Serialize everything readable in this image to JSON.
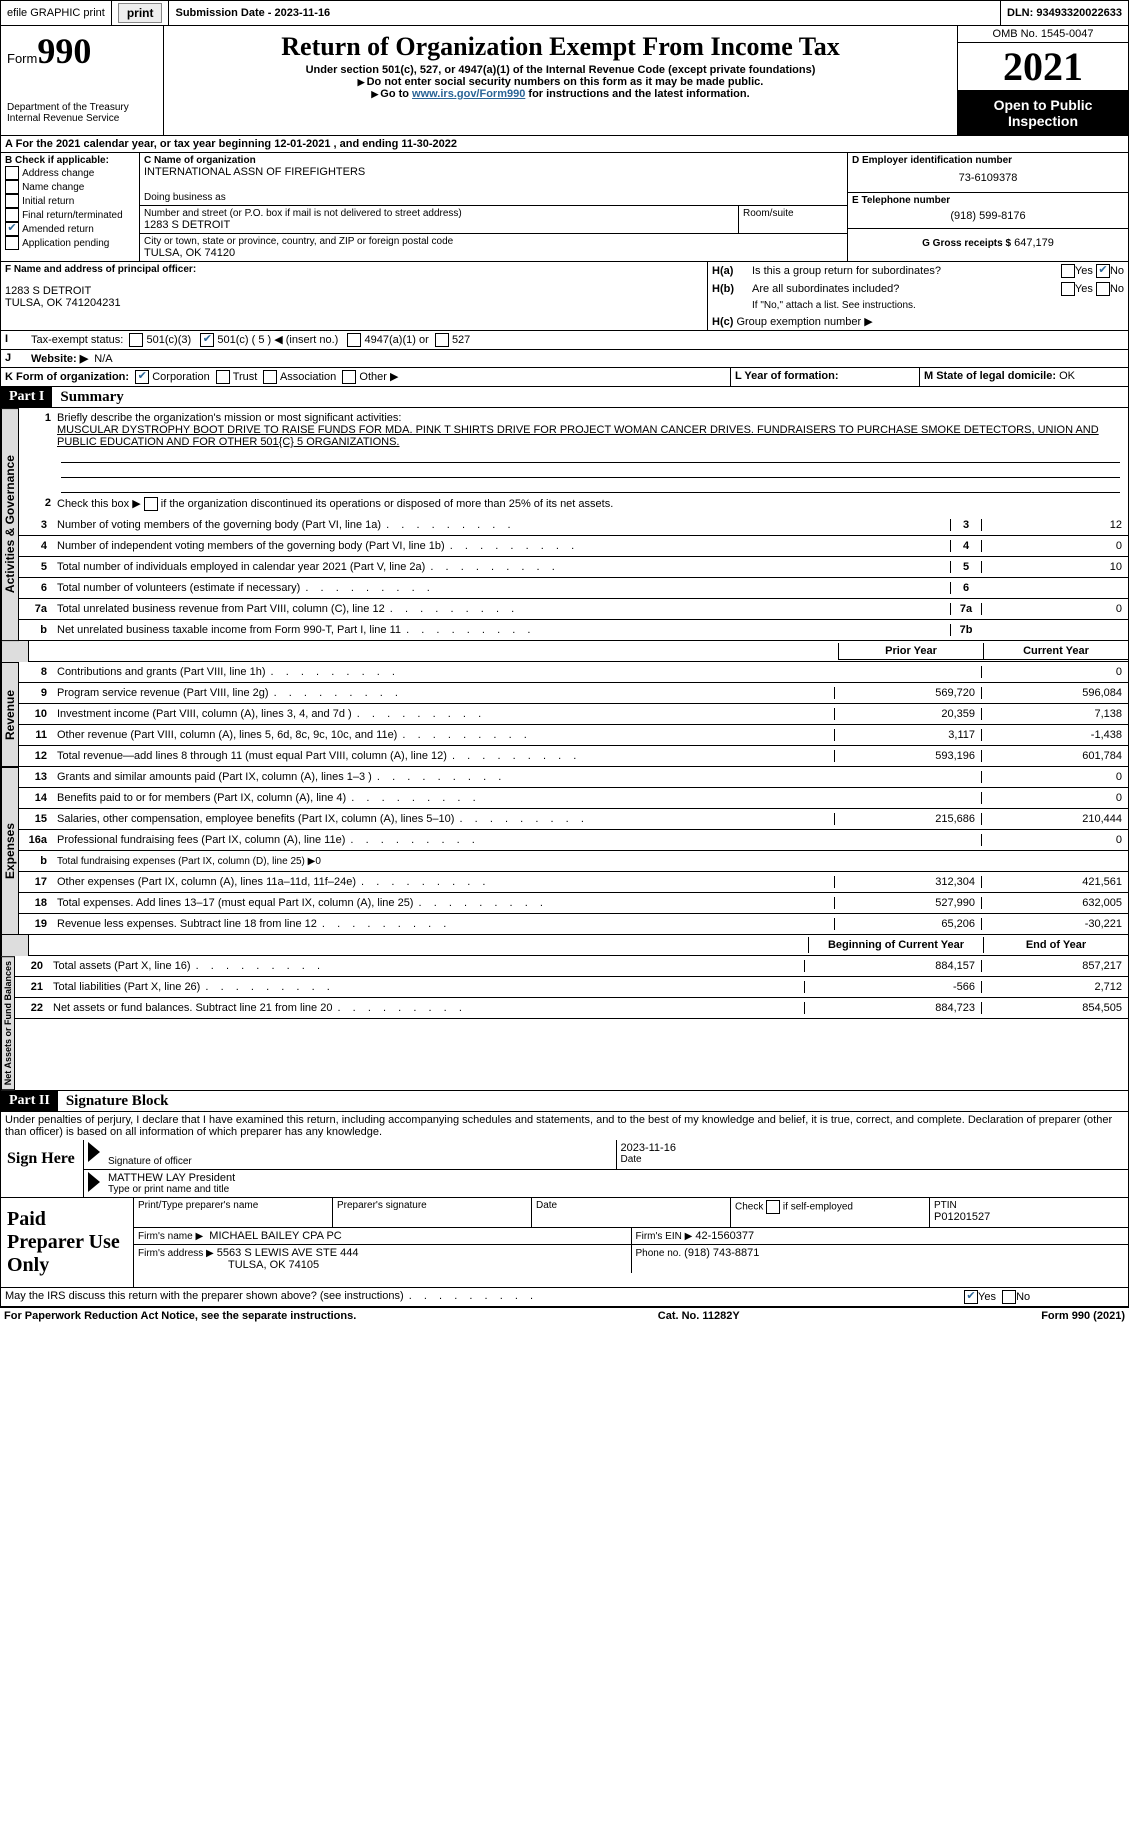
{
  "top": {
    "efile": "efile GRAPHIC print",
    "sub_label": "Submission Date -",
    "sub_date": "2023-11-16",
    "dln_label": "DLN:",
    "dln": "93493320022633"
  },
  "header": {
    "form_word": "Form",
    "form_num": "990",
    "dept": "Department of the Treasury",
    "irs": "Internal Revenue Service",
    "title": "Return of Organization Exempt From Income Tax",
    "sub1": "Under section 501(c), 527, or 4947(a)(1) of the Internal Revenue Code (except private foundations)",
    "sub2": "Do not enter social security numbers on this form as it may be made public.",
    "sub3_pre": "Go to ",
    "sub3_link": "www.irs.gov/Form990",
    "sub3_post": " for instructions and the latest information.",
    "omb": "OMB No. 1545-0047",
    "year": "2021",
    "inspect": "Open to Public Inspection"
  },
  "a": {
    "line": "For the 2021 calendar year, or tax year beginning 12-01-2021   , and ending 11-30-2022"
  },
  "b": {
    "label": "B Check if applicable:",
    "opts": [
      "Address change",
      "Name change",
      "Initial return",
      "Final return/terminated",
      "Amended return",
      "Application pending"
    ]
  },
  "c": {
    "name_lbl": "C Name of organization",
    "name": "INTERNATIONAL ASSN OF FIREFIGHTERS",
    "dba_lbl": "Doing business as",
    "street_lbl": "Number and street (or P.O. box if mail is not delivered to street address)",
    "street": "1283 S DETROIT",
    "room_lbl": "Room/suite",
    "city_lbl": "City or town, state or province, country, and ZIP or foreign postal code",
    "city": "TULSA, OK  74120"
  },
  "d": {
    "lbl": "D Employer identification number",
    "val": "73-6109378"
  },
  "e": {
    "lbl": "E Telephone number",
    "val": "(918) 599-8176"
  },
  "g": {
    "lbl": "G Gross receipts $",
    "val": "647,179"
  },
  "f": {
    "lbl": "F  Name and address of principal officer:",
    "addr1": "1283 S DETROIT",
    "addr2": "TULSA, OK  741204231"
  },
  "h": {
    "a": "Is this a group return for subordinates?",
    "b": "Are all subordinates included?",
    "note": "If \"No,\" attach a list. See instructions.",
    "c": "Group exemption number ▶",
    "yes": "Yes",
    "no": "No"
  },
  "i": {
    "lbl": "Tax-exempt status:",
    "o1": "501(c)(3)",
    "o2": "501(c) ( 5 ) ◀ (insert no.)",
    "o3": "4947(a)(1) or",
    "o4": "527"
  },
  "j": {
    "lbl": "Website: ▶",
    "val": "N/A"
  },
  "k": {
    "lbl": "K Form of organization:",
    "o1": "Corporation",
    "o2": "Trust",
    "o3": "Association",
    "o4": "Other ▶"
  },
  "l": {
    "lbl": "L Year of formation:"
  },
  "m": {
    "lbl": "M State of legal domicile:",
    "val": "OK"
  },
  "part1": {
    "label": "Part I",
    "title": "Summary",
    "l1_lbl": "Briefly describe the organization's mission or most significant activities:",
    "l1_txt": "MUSCULAR DYSTROPHY BOOT DRIVE TO RAISE FUNDS FOR MDA. PINK T SHIRTS DRIVE FOR PROJECT WOMAN CANCER DRIVES. FUNDRAISERS TO PURCHASE SMOKE DETECTORS, UNION AND PUBLIC EDUCATION AND FOR OTHER 501{C} 5 ORGANIZATIONS.",
    "l2": "Check this box ▶      if the organization discontinued its operations or disposed of more than 25% of its net assets.",
    "lines": [
      {
        "n": "3",
        "t": "Number of voting members of the governing body (Part VI, line 1a)",
        "k": "3",
        "v": "12"
      },
      {
        "n": "4",
        "t": "Number of independent voting members of the governing body (Part VI, line 1b)",
        "k": "4",
        "v": "0"
      },
      {
        "n": "5",
        "t": "Total number of individuals employed in calendar year 2021 (Part V, line 2a)",
        "k": "5",
        "v": "10"
      },
      {
        "n": "6",
        "t": "Total number of volunteers (estimate if necessary)",
        "k": "6",
        "v": ""
      },
      {
        "n": "7a",
        "t": "Total unrelated business revenue from Part VIII, column (C), line 12",
        "k": "7a",
        "v": "0"
      },
      {
        "n": "b",
        "t": "Net unrelated business taxable income from Form 990-T, Part I, line 11",
        "k": "7b",
        "v": ""
      }
    ],
    "prior": "Prior Year",
    "current": "Current Year",
    "rev": [
      {
        "n": "8",
        "t": "Contributions and grants (Part VIII, line 1h)",
        "p": "",
        "c": "0"
      },
      {
        "n": "9",
        "t": "Program service revenue (Part VIII, line 2g)",
        "p": "569,720",
        "c": "596,084"
      },
      {
        "n": "10",
        "t": "Investment income (Part VIII, column (A), lines 3, 4, and 7d )",
        "p": "20,359",
        "c": "7,138"
      },
      {
        "n": "11",
        "t": "Other revenue (Part VIII, column (A), lines 5, 6d, 8c, 9c, 10c, and 11e)",
        "p": "3,117",
        "c": "-1,438"
      },
      {
        "n": "12",
        "t": "Total revenue—add lines 8 through 11 (must equal Part VIII, column (A), line 12)",
        "p": "593,196",
        "c": "601,784"
      }
    ],
    "exp": [
      {
        "n": "13",
        "t": "Grants and similar amounts paid (Part IX, column (A), lines 1–3 )",
        "p": "",
        "c": "0"
      },
      {
        "n": "14",
        "t": "Benefits paid to or for members (Part IX, column (A), line 4)",
        "p": "",
        "c": "0"
      },
      {
        "n": "15",
        "t": "Salaries, other compensation, employee benefits (Part IX, column (A), lines 5–10)",
        "p": "215,686",
        "c": "210,444"
      },
      {
        "n": "16a",
        "t": "Professional fundraising fees (Part IX, column (A), line 11e)",
        "p": "",
        "c": "0"
      },
      {
        "n": "b",
        "t": "Total fundraising expenses (Part IX, column (D), line 25) ▶0",
        "shaded": true
      },
      {
        "n": "17",
        "t": "Other expenses (Part IX, column (A), lines 11a–11d, 11f–24e)",
        "p": "312,304",
        "c": "421,561"
      },
      {
        "n": "18",
        "t": "Total expenses. Add lines 13–17 (must equal Part IX, column (A), line 25)",
        "p": "527,990",
        "c": "632,005"
      },
      {
        "n": "19",
        "t": "Revenue less expenses. Subtract line 18 from line 12",
        "p": "65,206",
        "c": "-30,221"
      }
    ],
    "boy": "Beginning of Current Year",
    "eoy": "End of Year",
    "net": [
      {
        "n": "20",
        "t": "Total assets (Part X, line 16)",
        "p": "884,157",
        "c": "857,217"
      },
      {
        "n": "21",
        "t": "Total liabilities (Part X, line 26)",
        "p": "-566",
        "c": "2,712"
      },
      {
        "n": "22",
        "t": "Net assets or fund balances. Subtract line 21 from line 20",
        "p": "884,723",
        "c": "854,505"
      }
    ],
    "vtabs": {
      "gov": "Activities & Governance",
      "rev": "Revenue",
      "exp": "Expenses",
      "net": "Net Assets or Fund Balances"
    }
  },
  "part2": {
    "label": "Part II",
    "title": "Signature Block",
    "decl": "Under penalties of perjury, I declare that I have examined this return, including accompanying schedules and statements, and to the best of my knowledge and belief, it is true, correct, and complete. Declaration of preparer (other than officer) is based on all information of which preparer has any knowledge."
  },
  "sign": {
    "here": "Sign Here",
    "sig_lbl": "Signature of officer",
    "date_lbl": "Date",
    "date": "2023-11-16",
    "name": "MATTHEW LAY  President",
    "name_lbl": "Type or print name and title"
  },
  "paid": {
    "title": "Paid Preparer Use Only",
    "h1": "Print/Type preparer's name",
    "h2": "Preparer's signature",
    "h3": "Date",
    "h4_pre": "Check",
    "h4_post": "if self-employed",
    "ptin_lbl": "PTIN",
    "ptin": "P01201527",
    "firm_lbl": "Firm's name   ▶",
    "firm": "MICHAEL BAILEY CPA PC",
    "ein_lbl": "Firm's EIN ▶",
    "ein": "42-1560377",
    "addr_lbl": "Firm's address ▶",
    "addr1": "5563 S LEWIS AVE STE 444",
    "addr2": "TULSA, OK  74105",
    "phone_lbl": "Phone no.",
    "phone": "(918) 743-8871"
  },
  "discuss": {
    "q": "May the IRS discuss this return with the preparer shown above? (see instructions)",
    "yes": "Yes",
    "no": "No"
  },
  "footer": {
    "left": "For Paperwork Reduction Act Notice, see the separate instructions.",
    "mid": "Cat. No. 11282Y",
    "right": "Form 990 (2021)"
  }
}
